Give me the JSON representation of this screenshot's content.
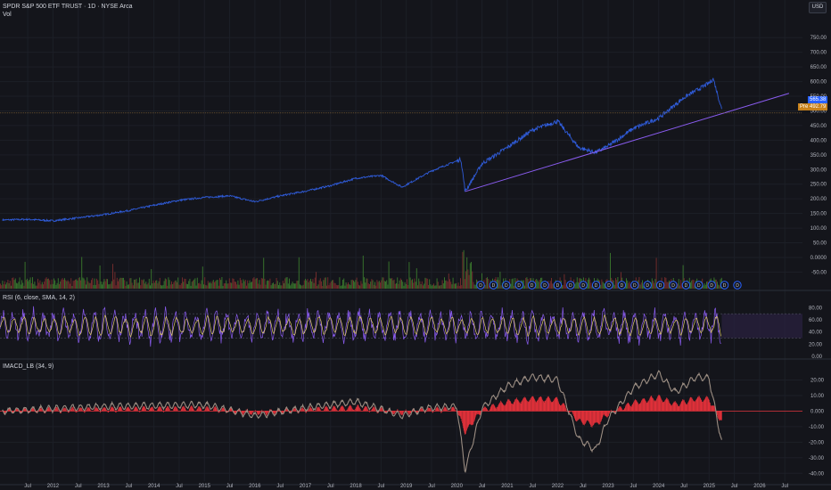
{
  "header": {
    "symbol_title": "SPDR S&P 500 ETF TRUST · 1D · NYSE Arca",
    "volume_label": "Vol",
    "currency_button": "USD"
  },
  "price_tags": {
    "last_price": "565.38",
    "prev_label": "Pre",
    "prev_price": "492.79"
  },
  "indicators": {
    "rsi_title": "RSI (6, close, SMA, 14, 2)",
    "macd_title": "IMACD_LB (34, 9)"
  },
  "event_marker": "D",
  "colors": {
    "background": "#14151b",
    "price_line": "#2f5bd8",
    "trendline": "#8a5cf0",
    "volume_green": "#3b7a2e",
    "volume_red": "#7a2e2e",
    "rsi_line": "#8a5cf0",
    "rsi_signal": "#e0c870",
    "macd_line": "#9b8d82",
    "macd_hist": "#e0313a",
    "last_price_tag": "#2962ff",
    "prev_tag": "#c9821b"
  },
  "chart_data": [
    {
      "type": "line",
      "panel": "price",
      "x": [
        "2011-01",
        "2011-07",
        "2012-01",
        "2012-07",
        "2013-01",
        "2013-07",
        "2014-01",
        "2014-07",
        "2015-01",
        "2015-07",
        "2016-01",
        "2016-07",
        "2017-01",
        "2017-07",
        "2018-01",
        "2018-07",
        "2018-12",
        "2019-07",
        "2020-02",
        "2020-03",
        "2020-07",
        "2021-01",
        "2021-07",
        "2022-01",
        "2022-06",
        "2022-10",
        "2023-01",
        "2023-07",
        "2024-01",
        "2024-07",
        "2025-01",
        "2025-02",
        "2025-04"
      ],
      "values": [
        128,
        130,
        125,
        135,
        146,
        160,
        178,
        195,
        205,
        210,
        190,
        210,
        226,
        245,
        270,
        280,
        240,
        295,
        335,
        225,
        320,
        375,
        435,
        465,
        375,
        358,
        380,
        440,
        475,
        545,
        595,
        610,
        505
      ],
      "series_name": "SPDR S&P 500 ETF TRUST",
      "y_ticks": [
        "750.00",
        "700.00",
        "650.00",
        "600.00",
        "550.00",
        "500.00",
        "450.00",
        "400.00",
        "350.00",
        "300.00",
        "250.00",
        "200.00",
        "150.00",
        "100.00",
        "50.00",
        "0.0000",
        "-50.00"
      ],
      "ylim": [
        -70,
        775
      ],
      "x_ticks": [
        "Jul",
        "2012",
        "Jul",
        "2013",
        "Jul",
        "2014",
        "Jul",
        "2015",
        "Jul",
        "2016",
        "Jul",
        "2017",
        "Jul",
        "2018",
        "Jul",
        "2019",
        "Jul",
        "2020",
        "Jul",
        "2021",
        "Jul",
        "2022",
        "Jul",
        "2023",
        "Jul",
        "2024",
        "Jul",
        "2025",
        "Jul",
        "2026",
        "Jul"
      ],
      "trendline": {
        "from": [
          "2020-03",
          225
        ],
        "to": [
          "2026-08",
          560
        ]
      },
      "horizontal_line": 492.79
    },
    {
      "type": "line",
      "panel": "rsi",
      "title": "RSI (6, close, SMA, 14, 2)",
      "y_ticks": [
        "80.00",
        "60.00",
        "40.00",
        "20.00",
        "0.00"
      ],
      "ylim": [
        0,
        85
      ],
      "band": [
        30,
        70
      ],
      "recent_values": [
        62,
        45,
        71,
        38,
        55,
        24,
        48
      ]
    },
    {
      "type": "line",
      "panel": "macd",
      "title": "IMACD_LB (34, 9)",
      "y_ticks": [
        "20.00",
        "10.00",
        "0.000",
        "-10.00",
        "-20.00",
        "-30.00",
        "-40.00"
      ],
      "ylim": [
        -41,
        26
      ],
      "x": [
        "2011-01",
        "2013-01",
        "2015-01",
        "2016-01",
        "2017-01",
        "2018-01",
        "2018-12",
        "2019-06",
        "2020-01",
        "2020-03",
        "2020-07",
        "2021-01",
        "2021-07",
        "2022-01",
        "2022-06",
        "2022-10",
        "2023-01",
        "2023-07",
        "2024-01",
        "2024-05",
        "2024-10",
        "2025-01",
        "2025-04"
      ],
      "values": [
        0,
        3,
        4,
        -3,
        2,
        6,
        -3,
        2,
        3,
        -38,
        2,
        16,
        22,
        20,
        -18,
        -25,
        -5,
        15,
        24,
        12,
        22,
        21,
        -20
      ]
    }
  ]
}
